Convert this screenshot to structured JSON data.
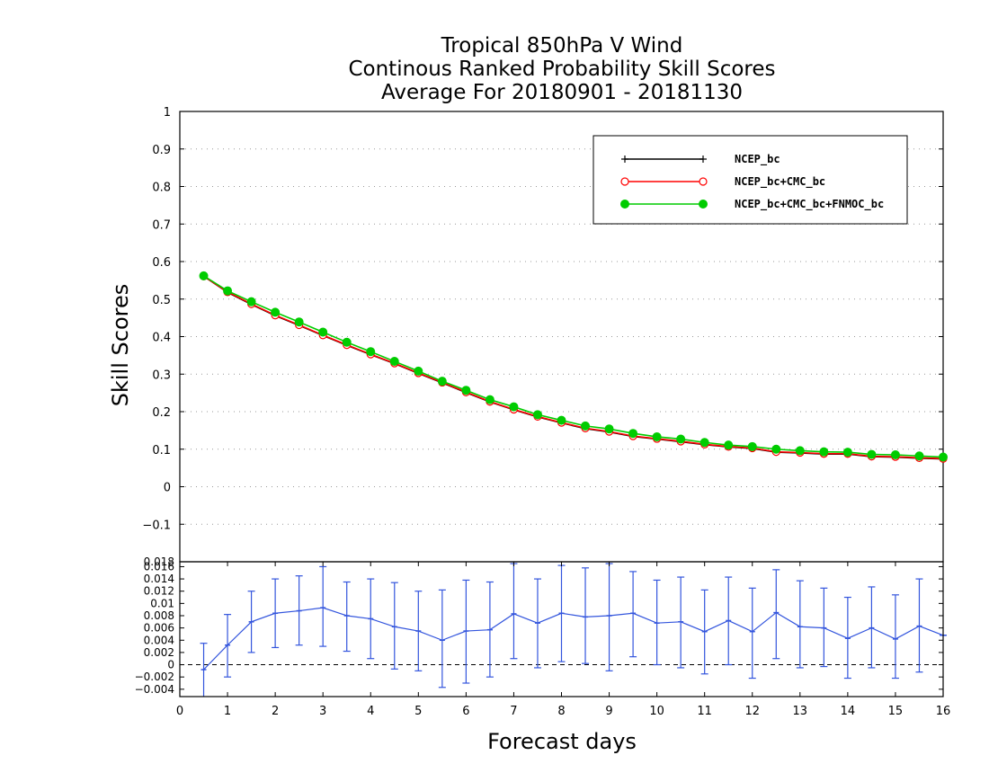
{
  "chart_data": [
    {
      "type": "line",
      "title": [
        "Tropical 850hPa V Wind",
        "Continous Ranked Probability Skill Scores",
        "Average For 20180901 - 20181130"
      ],
      "ylabel": "Skill Scores",
      "ylim": [
        -0.2,
        1.0
      ],
      "yticks": [
        "1",
        "0.9",
        "0.8",
        "0.7",
        "0.6",
        "0.5",
        "0.4",
        "0.3",
        "0.2",
        "0.1",
        "0",
        "−0.1"
      ],
      "ytick_values": [
        1.0,
        0.9,
        0.8,
        0.7,
        0.6,
        0.5,
        0.4,
        0.3,
        0.2,
        0.1,
        0.0,
        -0.1
      ],
      "grid": true,
      "legend_position": "top-right",
      "x": [
        0.5,
        1.0,
        1.5,
        2.0,
        2.5,
        3.0,
        3.5,
        4.0,
        4.5,
        5.0,
        5.5,
        6.0,
        6.5,
        7.0,
        7.5,
        8.0,
        8.5,
        9.0,
        9.5,
        10.0,
        10.5,
        11.0,
        11.5,
        12.0,
        12.5,
        13.0,
        13.5,
        14.0,
        14.5,
        15.0,
        15.5,
        16.0
      ],
      "series": [
        {
          "name": "NCEP_bc",
          "color": "#000000",
          "marker": "plus",
          "values": [
            0.561,
            0.518,
            0.486,
            0.456,
            0.43,
            0.403,
            0.377,
            0.352,
            0.328,
            0.302,
            0.277,
            0.251,
            0.226,
            0.205,
            0.186,
            0.17,
            0.155,
            0.146,
            0.134,
            0.127,
            0.12,
            0.112,
            0.106,
            0.102,
            0.092,
            0.09,
            0.087,
            0.087,
            0.08,
            0.079,
            0.076,
            0.074
          ]
        },
        {
          "name": "NCEP_bc+CMC_bc",
          "color": "#ff0000",
          "marker": "open-circle",
          "values": [
            0.561,
            0.519,
            0.487,
            0.457,
            0.431,
            0.404,
            0.378,
            0.353,
            0.329,
            0.303,
            0.278,
            0.252,
            0.227,
            0.206,
            0.187,
            0.171,
            0.156,
            0.147,
            0.135,
            0.128,
            0.121,
            0.113,
            0.107,
            0.103,
            0.093,
            0.091,
            0.088,
            0.088,
            0.081,
            0.08,
            0.077,
            0.075
          ]
        },
        {
          "name": "NCEP_bc+CMC_bc+FNMOC_bc",
          "color": "#00cc00",
          "marker": "filled-circle",
          "values": [
            0.562,
            0.522,
            0.493,
            0.465,
            0.439,
            0.412,
            0.385,
            0.36,
            0.334,
            0.308,
            0.281,
            0.257,
            0.232,
            0.213,
            0.192,
            0.177,
            0.162,
            0.154,
            0.142,
            0.133,
            0.127,
            0.118,
            0.111,
            0.107,
            0.1,
            0.096,
            0.093,
            0.092,
            0.086,
            0.085,
            0.082,
            0.079
          ]
        }
      ]
    },
    {
      "type": "line",
      "subtype": "errorbar",
      "xlabel": "Forecast days",
      "ylim": [
        -0.0052,
        0.0168
      ],
      "yticks": [
        "0.016",
        "0.014",
        "0.012",
        "0.01",
        "0.008",
        "0.006",
        "0.004",
        "0.002",
        "0",
        "−0.002",
        "−0.004"
      ],
      "ytick_values": [
        0.016,
        0.014,
        0.012,
        0.01,
        0.008,
        0.006,
        0.004,
        0.002,
        0.0,
        -0.002,
        -0.004
      ],
      "top_label": "0.018",
      "xticks": [
        "0",
        "1",
        "2",
        "3",
        "4",
        "5",
        "6",
        "7",
        "8",
        "9",
        "10",
        "11",
        "12",
        "13",
        "14",
        "15",
        "16"
      ],
      "xlim": [
        0,
        16
      ],
      "zero_line": "dashed",
      "color": "#3355dd",
      "x": [
        0.5,
        1.0,
        1.5,
        2.0,
        2.5,
        3.0,
        3.5,
        4.0,
        4.5,
        5.0,
        5.5,
        6.0,
        6.5,
        7.0,
        7.5,
        8.0,
        8.5,
        9.0,
        9.5,
        10.0,
        10.5,
        11.0,
        11.5,
        12.0,
        12.5,
        13.0,
        13.5,
        14.0,
        14.5,
        15.0,
        15.5,
        16.0
      ],
      "values": [
        -0.0008,
        0.0032,
        0.007,
        0.0084,
        0.0088,
        0.0093,
        0.008,
        0.0075,
        0.0062,
        0.0055,
        0.004,
        0.0055,
        0.0057,
        0.0083,
        0.0068,
        0.0084,
        0.0078,
        0.008,
        0.0084,
        0.0068,
        0.007,
        0.0054,
        0.0072,
        0.0054,
        0.0085,
        0.0062,
        0.006,
        0.0043,
        0.006,
        0.0042,
        0.0063,
        0.0048
      ],
      "upper": [
        0.0035,
        0.0082,
        0.012,
        0.014,
        0.0145,
        0.016,
        0.0135,
        0.014,
        0.0134,
        0.012,
        0.0122,
        0.0138,
        0.0135,
        0.0165,
        0.014,
        0.0162,
        0.0158,
        0.0165,
        0.0152,
        0.0138,
        0.0143,
        0.0122,
        0.0143,
        0.0125,
        0.0155,
        0.0137,
        0.0125,
        0.011,
        0.0127,
        0.0114,
        0.014,
        0.0048
      ],
      "lower": [
        -0.0055,
        -0.002,
        0.002,
        0.0028,
        0.0032,
        0.003,
        0.0022,
        0.001,
        -0.0007,
        -0.001,
        -0.0037,
        -0.003,
        -0.002,
        0.001,
        -0.0005,
        0.0005,
        0.0002,
        -0.001,
        0.0013,
        0.0,
        -0.0005,
        -0.0015,
        0.0,
        -0.0022,
        0.001,
        -0.0005,
        -0.0003,
        -0.0022,
        -0.0005,
        -0.0022,
        -0.0012,
        0.0048
      ]
    }
  ]
}
